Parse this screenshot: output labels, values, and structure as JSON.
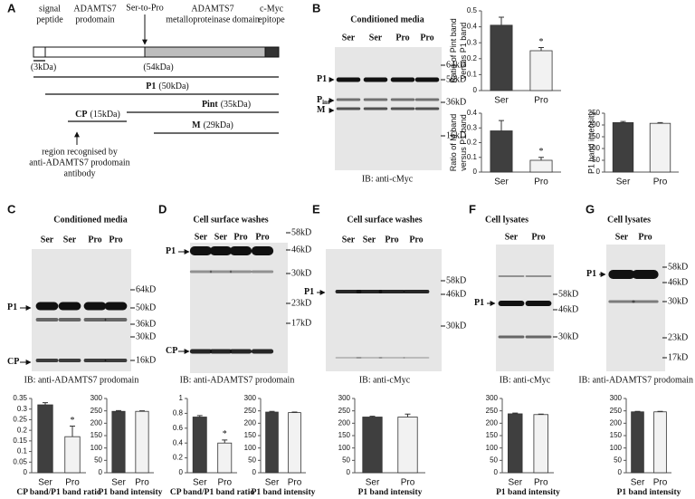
{
  "panel_a": {
    "letter": "A",
    "top_labels": [
      [
        "signal",
        "peptide"
      ],
      [
        "ADAMTS7",
        "prodomain"
      ],
      [
        "ADAMTS7",
        "metalloproteinase domain"
      ],
      [
        "c-Myc",
        "epitope"
      ]
    ],
    "mutation": "Ser-to-Pro",
    "fragments": [
      {
        "size": "(3kDa)"
      },
      {
        "size": "(54kDa)"
      },
      {
        "name": "P1",
        "size": "(50kDa)"
      },
      {
        "name": "Pint",
        "size": "(35kDa)"
      },
      {
        "name": "CP",
        "size": "(15kDa)"
      },
      {
        "name": "M",
        "size": "(29kDa)"
      }
    ],
    "note": [
      "region recognised by",
      "anti-ADAMTS7 prodomain",
      "antibody"
    ]
  },
  "blots": [
    {
      "letter": "B",
      "title": "Conditioned media",
      "lanes": [
        "Ser",
        "Ser",
        "Pro",
        "Pro"
      ],
      "markers": [
        "64kD",
        "50kD",
        "36kD",
        "16kD"
      ],
      "band_labels": [
        {
          "text": "P1"
        },
        {
          "text": "P",
          "sub": "int"
        },
        {
          "text": "M"
        }
      ],
      "ib": "IB: anti-cMyc"
    },
    {
      "letter": "C",
      "title": "Conditioned media",
      "lanes": [
        "Ser",
        "Ser",
        "Pro",
        "Pro"
      ],
      "markers": [
        "64kD",
        "50kD",
        "36kD",
        "30kD",
        "16kD"
      ],
      "band_labels": [
        {
          "text": "P1"
        },
        {
          "text": "CP"
        }
      ],
      "ib": "IB: anti-ADAMTS7 prodomain"
    },
    {
      "letter": "D",
      "title": "Cell surface washes",
      "lanes": [
        "Ser",
        "Ser",
        "Pro",
        "Pro"
      ],
      "markers": [
        "58kD",
        "46kD",
        "30kD",
        "23kD",
        "17kD"
      ],
      "band_labels": [
        {
          "text": "P1"
        },
        {
          "text": "CP"
        }
      ],
      "ib": "IB: anti-ADAMTS7 prodomain"
    },
    {
      "letter": "E",
      "title": "Cell surface washes",
      "lanes": [
        "Ser",
        "Ser",
        "Pro",
        "Pro"
      ],
      "markers": [
        "58kD",
        "46kD",
        "30kD"
      ],
      "band_labels": [
        {
          "text": "P1"
        }
      ],
      "ib": "IB: anti-cMyc"
    },
    {
      "letter": "F",
      "title": "Cell lysates",
      "lanes": [
        "Ser",
        "Pro"
      ],
      "markers": [
        "58kD",
        "46kD",
        "30kD"
      ],
      "band_labels": [
        {
          "text": "P1"
        }
      ],
      "ib": "IB: anti-cMyc"
    },
    {
      "letter": "G",
      "title": "Cell lysates",
      "lanes": [
        "Ser",
        "Pro"
      ],
      "markers": [
        "58kD",
        "46kD",
        "30kD",
        "23kD",
        "17kD"
      ],
      "band_labels": [
        {
          "text": "P1"
        }
      ],
      "ib": "IB: anti-ADAMTS7 prodomain"
    }
  ],
  "chart_data": [
    {
      "type": "bar",
      "ylabel": [
        "Ratio of Pint band",
        "versus P1 band"
      ],
      "categories": [
        "Ser",
        "Pro"
      ],
      "values": [
        0.41,
        0.25
      ],
      "errors": [
        0.05,
        0.02
      ],
      "markers": [
        null,
        "*"
      ],
      "colors": [
        "#3f3f3f",
        "#f2f2f2"
      ],
      "ylim": [
        0,
        0.5
      ],
      "yticks": [
        0,
        0.1,
        0.2,
        0.3,
        0.4,
        0.5
      ]
    },
    {
      "type": "bar",
      "ylabel": [
        "Ratio of M band",
        "versus P1 band"
      ],
      "categories": [
        "Ser",
        "Pro"
      ],
      "values": [
        0.28,
        0.08
      ],
      "errors": [
        0.07,
        0.02
      ],
      "markers": [
        null,
        "*"
      ],
      "colors": [
        "#3f3f3f",
        "#f2f2f2"
      ],
      "ylim": [
        0,
        0.4
      ],
      "yticks": [
        0,
        0.1,
        0.2,
        0.3,
        0.4
      ]
    },
    {
      "type": "bar",
      "ylabel": [
        "P1 band intensity"
      ],
      "categories": [
        "Ser",
        "Pro"
      ],
      "values": [
        210,
        207
      ],
      "errors": [
        5,
        3
      ],
      "colors": [
        "#3f3f3f",
        "#f2f2f2"
      ],
      "ylim": [
        0,
        250
      ],
      "yticks": [
        0,
        50,
        100,
        150,
        200,
        250
      ]
    },
    {
      "type": "bar",
      "xlabel": "CP band/P1 band ratio",
      "categories": [
        "Ser",
        "Pro"
      ],
      "values": [
        0.32,
        0.17
      ],
      "errors": [
        0.01,
        0.05
      ],
      "markers": [
        null,
        "*"
      ],
      "colors": [
        "#3f3f3f",
        "#f2f2f2"
      ],
      "ylim": [
        0,
        0.35
      ],
      "yticks": [
        0,
        0.05,
        0.1,
        0.15,
        0.2,
        0.25,
        0.3,
        0.35
      ]
    },
    {
      "type": "bar",
      "xlabel": "P1 band intensity",
      "categories": [
        "Ser",
        "Pro"
      ],
      "values": [
        248,
        248
      ],
      "errors": [
        3,
        2
      ],
      "colors": [
        "#3f3f3f",
        "#f2f2f2"
      ],
      "ylim": [
        0,
        300
      ],
      "yticks": [
        0,
        50,
        100,
        150,
        200,
        250,
        300
      ]
    },
    {
      "type": "bar",
      "xlabel": "CP band/P1 band ratio",
      "categories": [
        "Ser",
        "Pro"
      ],
      "values": [
        0.75,
        0.4
      ],
      "errors": [
        0.02,
        0.04
      ],
      "markers": [
        null,
        "*"
      ],
      "colors": [
        "#3f3f3f",
        "#f2f2f2"
      ],
      "ylim": [
        0,
        1
      ],
      "yticks": [
        0,
        0.2,
        0.4,
        0.6,
        0.8,
        1
      ]
    },
    {
      "type": "bar",
      "xlabel": "P1 band intensity",
      "categories": [
        "Ser",
        "Pro"
      ],
      "values": [
        245,
        243
      ],
      "errors": [
        3,
        2
      ],
      "colors": [
        "#3f3f3f",
        "#f2f2f2"
      ],
      "ylim": [
        0,
        300
      ],
      "yticks": [
        0,
        50,
        100,
        150,
        200,
        250,
        300
      ]
    },
    {
      "type": "bar",
      "xlabel": "P1 band intensity",
      "categories": [
        "Ser",
        "Pro"
      ],
      "values": [
        225,
        225
      ],
      "errors": [
        3,
        12
      ],
      "colors": [
        "#3f3f3f",
        "#f2f2f2"
      ],
      "ylim": [
        0,
        300
      ],
      "yticks": [
        0,
        50,
        100,
        150,
        200,
        250,
        300
      ]
    },
    {
      "type": "bar",
      "xlabel": "P1 band intensity",
      "categories": [
        "Ser",
        "Pro"
      ],
      "values": [
        238,
        235
      ],
      "errors": [
        3,
        2
      ],
      "colors": [
        "#3f3f3f",
        "#f2f2f2"
      ],
      "ylim": [
        0,
        300
      ],
      "yticks": [
        0,
        50,
        100,
        150,
        200,
        250,
        300
      ]
    },
    {
      "type": "bar",
      "xlabel": "P1 band intensity",
      "categories": [
        "Ser",
        "Pro"
      ],
      "values": [
        246,
        246
      ],
      "errors": [
        2,
        2
      ],
      "colors": [
        "#3f3f3f",
        "#f2f2f2"
      ],
      "ylim": [
        0,
        300
      ],
      "yticks": [
        0,
        50,
        100,
        150,
        200,
        250,
        300
      ]
    }
  ]
}
